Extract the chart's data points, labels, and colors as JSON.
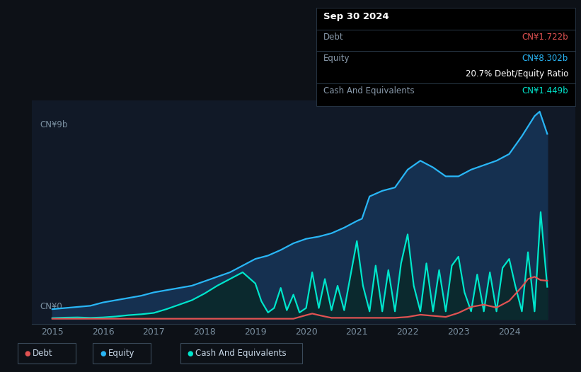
{
  "bg_color": "#0d1117",
  "plot_bg_color": "#111927",
  "tooltip_bg": "#000000",
  "grid_color": "#1c2b3a",
  "axis_color": "#2a3a4a",
  "tick_color": "#7a8fa0",
  "label_color": "#8899aa",
  "debt_line_color": "#e05252",
  "equity_line_color": "#29b6f6",
  "cash_line_color": "#00e5cc",
  "equity_fill_color": "#153050",
  "cash_fill_color": "#0a2828",
  "ylabel_top": "CN¥9b",
  "ylabel_bottom": "CN¥0",
  "xmin": 2014.6,
  "xmax": 2025.3,
  "ymin": -0.2,
  "ymax": 9.8,
  "equity_x": [
    2015.0,
    2015.25,
    2015.5,
    2015.75,
    2016.0,
    2016.25,
    2016.5,
    2016.75,
    2017.0,
    2017.25,
    2017.5,
    2017.75,
    2018.0,
    2018.25,
    2018.5,
    2018.75,
    2019.0,
    2019.25,
    2019.5,
    2019.75,
    2020.0,
    2020.25,
    2020.5,
    2020.75,
    2021.0,
    2021.1,
    2021.25,
    2021.5,
    2021.75,
    2022.0,
    2022.25,
    2022.5,
    2022.75,
    2023.0,
    2023.25,
    2023.5,
    2023.75,
    2024.0,
    2024.25,
    2024.5,
    2024.6,
    2024.75
  ],
  "equity_y": [
    0.45,
    0.5,
    0.55,
    0.6,
    0.75,
    0.85,
    0.95,
    1.05,
    1.2,
    1.3,
    1.4,
    1.5,
    1.7,
    1.9,
    2.1,
    2.4,
    2.7,
    2.85,
    3.1,
    3.4,
    3.6,
    3.7,
    3.85,
    4.1,
    4.4,
    4.5,
    5.5,
    5.75,
    5.9,
    6.7,
    7.1,
    6.8,
    6.4,
    6.4,
    6.7,
    6.9,
    7.1,
    7.4,
    8.2,
    9.1,
    9.3,
    8.302
  ],
  "cash_x": [
    2015.0,
    2015.25,
    2015.5,
    2015.75,
    2016.0,
    2016.25,
    2016.5,
    2016.75,
    2017.0,
    2017.25,
    2017.5,
    2017.75,
    2018.0,
    2018.25,
    2018.5,
    2018.75,
    2019.0,
    2019.12,
    2019.25,
    2019.37,
    2019.5,
    2019.62,
    2019.75,
    2019.87,
    2020.0,
    2020.12,
    2020.25,
    2020.37,
    2020.5,
    2020.62,
    2020.75,
    2020.87,
    2021.0,
    2021.12,
    2021.25,
    2021.37,
    2021.5,
    2021.62,
    2021.75,
    2021.87,
    2022.0,
    2022.12,
    2022.25,
    2022.37,
    2022.5,
    2022.62,
    2022.75,
    2022.87,
    2023.0,
    2023.12,
    2023.25,
    2023.37,
    2023.5,
    2023.62,
    2023.75,
    2023.87,
    2024.0,
    2024.12,
    2024.25,
    2024.37,
    2024.5,
    2024.62,
    2024.75
  ],
  "cash_y": [
    0.05,
    0.07,
    0.08,
    0.06,
    0.08,
    0.12,
    0.18,
    0.22,
    0.28,
    0.45,
    0.65,
    0.85,
    1.15,
    1.5,
    1.8,
    2.1,
    1.6,
    0.8,
    0.3,
    0.5,
    1.4,
    0.4,
    1.1,
    0.3,
    0.5,
    2.1,
    0.5,
    1.8,
    0.4,
    1.5,
    0.4,
    1.9,
    3.5,
    1.5,
    0.35,
    2.4,
    0.35,
    2.2,
    0.35,
    2.5,
    3.8,
    1.5,
    0.35,
    2.5,
    0.35,
    2.2,
    0.35,
    2.4,
    2.8,
    1.2,
    0.35,
    2.0,
    0.35,
    2.1,
    0.35,
    2.3,
    2.7,
    1.5,
    0.35,
    3.0,
    0.35,
    4.8,
    1.449
  ],
  "debt_x": [
    2015.0,
    2015.25,
    2015.5,
    2015.75,
    2016.0,
    2016.25,
    2016.5,
    2016.75,
    2017.0,
    2017.25,
    2017.5,
    2017.75,
    2018.0,
    2018.25,
    2018.5,
    2018.75,
    2019.0,
    2019.25,
    2019.5,
    2019.75,
    2020.0,
    2020.12,
    2020.25,
    2020.37,
    2020.5,
    2020.62,
    2020.75,
    2021.0,
    2021.25,
    2021.5,
    2021.75,
    2022.0,
    2022.25,
    2022.5,
    2022.75,
    2023.0,
    2023.25,
    2023.5,
    2023.75,
    2024.0,
    2024.25,
    2024.37,
    2024.5,
    2024.62,
    2024.75
  ],
  "debt_y": [
    0.02,
    0.02,
    0.02,
    0.02,
    0.02,
    0.02,
    0.02,
    0.02,
    0.02,
    0.02,
    0.02,
    0.02,
    0.02,
    0.02,
    0.02,
    0.02,
    0.02,
    0.02,
    0.02,
    0.02,
    0.18,
    0.25,
    0.18,
    0.12,
    0.06,
    0.06,
    0.06,
    0.06,
    0.06,
    0.06,
    0.06,
    0.1,
    0.2,
    0.15,
    0.1,
    0.28,
    0.55,
    0.65,
    0.52,
    0.82,
    1.45,
    1.8,
    1.9,
    1.75,
    1.722
  ],
  "xticks": [
    2015,
    2016,
    2017,
    2018,
    2019,
    2020,
    2021,
    2022,
    2023,
    2024
  ],
  "tooltip": {
    "date": "Sep 30 2024",
    "debt_label": "Debt",
    "debt_value": "CN¥1.722b",
    "debt_color": "#e05252",
    "equity_label": "Equity",
    "equity_value": "CN¥8.302b",
    "equity_color": "#29b6f6",
    "ratio_bold": "20.7%",
    "ratio_rest": " Debt/Equity Ratio",
    "cash_label": "Cash And Equivalents",
    "cash_value": "CN¥1.449b",
    "cash_color": "#00e5cc",
    "label_color": "#8899aa",
    "text_color": "#ffffff"
  },
  "legend": [
    {
      "label": "Debt",
      "color": "#e05252"
    },
    {
      "label": "Equity",
      "color": "#29b6f6"
    },
    {
      "label": "Cash And Equivalents",
      "color": "#00e5cc"
    }
  ]
}
